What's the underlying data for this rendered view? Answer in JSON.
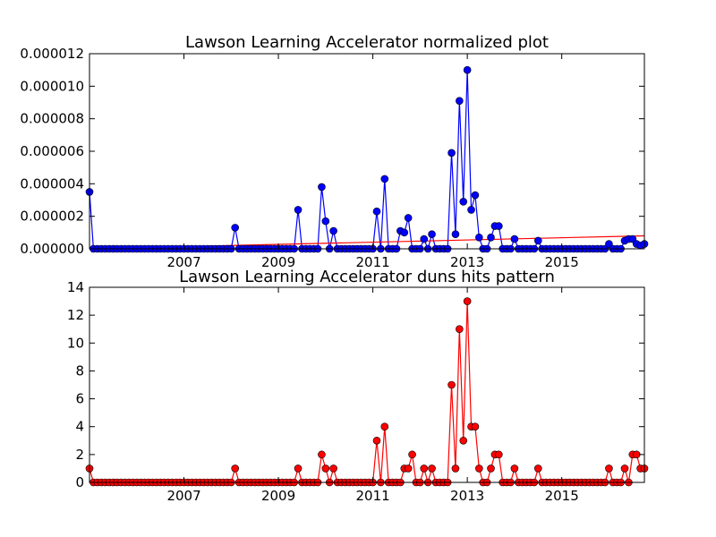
{
  "chart_data": [
    {
      "type": "line",
      "title": "Lawson Learning Accelerator normalized plot",
      "xlabel": "",
      "ylabel": "",
      "x_range": [
        2005.0,
        2016.75
      ],
      "ylim": [
        0,
        1.2e-05
      ],
      "x_tick_labels": [
        "2007",
        "2009",
        "2011",
        "2013",
        "2015"
      ],
      "y_tick_labels": [
        "0.000000",
        "0.000002",
        "0.000004",
        "0.000006",
        "0.000008",
        "0.000010",
        "0.000012"
      ],
      "colors": {
        "series": "#0000ff",
        "trend": "#ff0000"
      },
      "grid": false,
      "trend_line": {
        "x": [
          2005.0,
          2016.75
        ],
        "y": [
          0.0,
          8e-07
        ]
      },
      "series": [
        {
          "x": [
            2005.0,
            2008.08,
            2009.42,
            2009.92,
            2010.0,
            2010.17,
            2011.08,
            2011.25,
            2011.58,
            2011.67,
            2011.75,
            2012.08,
            2012.25,
            2012.67,
            2012.75,
            2012.83,
            2012.92,
            2013.0,
            2013.08,
            2013.17,
            2013.25,
            2013.5,
            2013.58,
            2013.67,
            2014.0,
            2014.5,
            2016.0,
            2016.33,
            2016.42,
            2016.5,
            2016.58,
            2016.67,
            2016.75
          ],
          "y": [
            3.5e-06,
            1.3e-06,
            2.4e-06,
            3.8e-06,
            1.7e-06,
            1.1e-06,
            2.3e-06,
            4.3e-06,
            1.1e-06,
            1e-06,
            1.9e-06,
            6e-07,
            9e-07,
            5.9e-06,
            9e-07,
            9.1e-06,
            2.9e-06,
            1.1e-05,
            2.4e-06,
            3.3e-06,
            7e-07,
            7e-07,
            1.4e-06,
            1.4e-06,
            6e-07,
            5e-07,
            3e-07,
            5e-07,
            6e-07,
            6e-07,
            3e-07,
            2e-07,
            3e-07
          ]
        }
      ]
    },
    {
      "type": "line",
      "title": "Lawson Learning Accelerator duns hits pattern",
      "xlabel": "",
      "ylabel": "",
      "x_range": [
        2005.0,
        2016.75
      ],
      "ylim": [
        0,
        14
      ],
      "x_tick_labels": [
        "2007",
        "2009",
        "2011",
        "2013",
        "2015"
      ],
      "y_tick_labels": [
        "0",
        "2",
        "4",
        "6",
        "8",
        "10",
        "12",
        "14"
      ],
      "colors": {
        "series": "#ff0000"
      },
      "grid": false,
      "series": [
        {
          "x": [
            2005.0,
            2008.08,
            2009.42,
            2009.92,
            2010.0,
            2010.17,
            2011.08,
            2011.25,
            2011.67,
            2011.75,
            2011.83,
            2012.08,
            2012.25,
            2012.67,
            2012.75,
            2012.83,
            2012.92,
            2013.0,
            2013.08,
            2013.17,
            2013.25,
            2013.5,
            2013.58,
            2013.67,
            2014.0,
            2014.5,
            2016.0,
            2016.33,
            2016.5,
            2016.58,
            2016.67,
            2016.75
          ],
          "y": [
            1,
            1,
            1,
            2,
            1,
            1,
            3,
            4,
            1,
            1,
            2,
            1,
            1,
            7,
            1,
            11,
            3,
            13,
            4,
            4,
            1,
            1,
            2,
            2,
            1,
            1,
            1,
            1,
            2,
            2,
            1,
            1
          ]
        }
      ]
    }
  ]
}
